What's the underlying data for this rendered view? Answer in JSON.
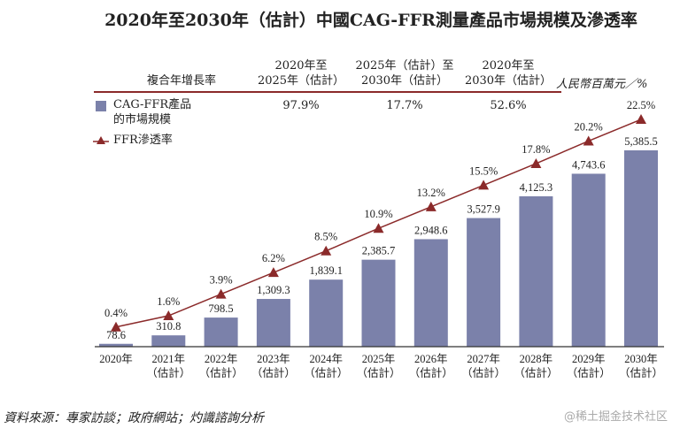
{
  "chart_data": {
    "type": "bar",
    "title": "2020年至2030年（估計）中國CAG-FFR測量產品市場規模及滲透率",
    "unit_label": "人民幣百萬元／%",
    "categories": [
      "2020年",
      "2021年",
      "2022年",
      "2023年",
      "2024年",
      "2025年",
      "2026年",
      "2027年",
      "2028年",
      "2029年",
      "2030年"
    ],
    "category_sublabels": [
      "",
      "（估計）",
      "（估計）",
      "（估計）",
      "（估計）",
      "（估計）",
      "（估計）",
      "（估計）",
      "（估計）",
      "（估計）",
      "（估計）"
    ],
    "series": [
      {
        "name": "CAG-FFR產品的市場規模",
        "type": "bar",
        "color": "#7b81aa",
        "values": [
          78.6,
          310.8,
          798.5,
          1309.3,
          1839.1,
          2385.7,
          2948.6,
          3527.9,
          4125.3,
          4743.6,
          5385.5
        ],
        "labels": [
          "78.6",
          "310.8",
          "798.5",
          "1,309.3",
          "1,839.1",
          "2,385.7",
          "2,948.6",
          "3,527.9",
          "4,125.3",
          "4,743.6",
          "5,385.5"
        ]
      },
      {
        "name": "FFR滲透率",
        "type": "line",
        "color": "#8b2a2a",
        "values": [
          0.4,
          1.6,
          3.9,
          6.2,
          8.5,
          10.9,
          13.2,
          15.5,
          17.8,
          20.2,
          22.5
        ],
        "labels": [
          "0.4%",
          "1.6%",
          "3.9%",
          "6.2%",
          "8.5%",
          "10.9%",
          "13.2%",
          "15.5%",
          "17.8%",
          "20.2%",
          "22.5%"
        ]
      }
    ],
    "legend": {
      "bar_label_line1": "CAG-FFR產品",
      "bar_label_line2": "的市場規模",
      "line_label": "FFR滲透率",
      "placement": "top-left"
    },
    "cagr_table": {
      "row_header": "複合年增長率",
      "columns": [
        {
          "line1": "2020年至",
          "line2": "2025年（估計）",
          "value": "97.9%"
        },
        {
          "line1": "2025年（估計）至",
          "line2": "2030年（估計）",
          "value": "17.7%"
        },
        {
          "line1": "2020年至",
          "line2": "2030年（估計）",
          "value": "52.6%"
        }
      ]
    },
    "source": "資料來源：專家訪談；政府網站；灼識諮詢分析",
    "watermark": "@稀土掘金技术社区"
  }
}
